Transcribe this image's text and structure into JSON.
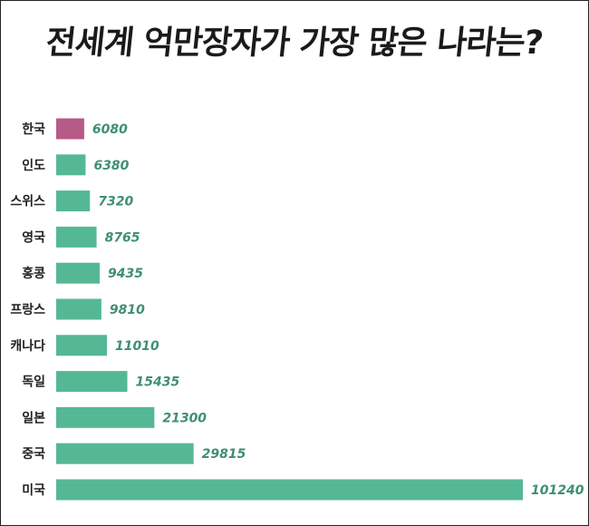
{
  "chart_data": {
    "type": "bar",
    "orientation": "horizontal",
    "title": "전세계 억만장자가 가장 많은 나라는?",
    "categories": [
      "한국",
      "인도",
      "스위스",
      "영국",
      "홍콩",
      "프랑스",
      "캐나다",
      "독일",
      "일본",
      "중국",
      "미국"
    ],
    "values": [
      6080,
      6380,
      7320,
      8765,
      9435,
      9810,
      11010,
      15435,
      21300,
      29815,
      101240
    ],
    "value_labels": [
      "6080",
      "6380",
      "7320",
      "8765",
      "9435",
      "9810",
      "11010",
      "15435",
      "21300",
      "29815",
      "101240"
    ],
    "highlight_category": "한국",
    "colors": {
      "highlight": "#b65a87",
      "bar": "#55b895",
      "value_text": "#3f8f72",
      "category_text": "#222222"
    },
    "grid": false,
    "legend": "none"
  }
}
